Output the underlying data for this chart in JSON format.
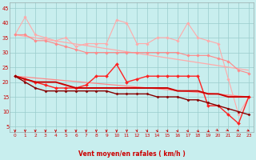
{
  "x": [
    0,
    1,
    2,
    3,
    4,
    5,
    6,
    7,
    8,
    9,
    10,
    11,
    12,
    13,
    14,
    15,
    16,
    17,
    18,
    19,
    20,
    21,
    22,
    23
  ],
  "rafales_spiky": [
    36,
    42,
    36,
    35,
    34,
    35,
    32,
    33,
    33,
    33,
    41,
    40,
    33,
    33,
    35,
    35,
    34,
    40,
    35,
    34,
    33,
    21,
    9,
    15
  ],
  "rafales_smooth": [
    36,
    36,
    34,
    34,
    33,
    32,
    31,
    30,
    30,
    30,
    30,
    30,
    30,
    30,
    30,
    30,
    30,
    29,
    29,
    29,
    28,
    27,
    24,
    23
  ],
  "vent_spiky": [
    22,
    21,
    20,
    19,
    18,
    18,
    18,
    19,
    22,
    22,
    26,
    20,
    21,
    22,
    22,
    22,
    22,
    22,
    22,
    12,
    12,
    9,
    6,
    15
  ],
  "vent_smooth_upper": [
    22,
    21,
    20,
    20,
    20,
    19,
    18,
    18,
    18,
    18,
    18,
    18,
    18,
    18,
    18,
    18,
    17,
    17,
    17,
    16,
    16,
    15,
    15,
    15
  ],
  "vent_smooth_lower": [
    22,
    20,
    18,
    17,
    17,
    17,
    17,
    17,
    17,
    17,
    16,
    16,
    16,
    16,
    15,
    15,
    15,
    14,
    14,
    13,
    12,
    11,
    10,
    9
  ],
  "trend_upper": [
    36,
    24
  ],
  "trend_lower": [
    22,
    15
  ],
  "bg_color": "#c8eeee",
  "color_light_pink": "#ffaaaa",
  "color_salmon": "#ff8888",
  "color_bright_red": "#ff2222",
  "color_dark_red": "#cc0000",
  "color_maroon": "#880000",
  "xlabel": "Vent moyen/en rafales ( km/h )",
  "yticks": [
    5,
    10,
    15,
    20,
    25,
    30,
    35,
    40,
    45
  ],
  "arrow_angles_deg": [
    90,
    90,
    90,
    90,
    90,
    90,
    90,
    90,
    90,
    90,
    90,
    90,
    85,
    85,
    80,
    80,
    75,
    75,
    70,
    65,
    55,
    50,
    40,
    35
  ]
}
